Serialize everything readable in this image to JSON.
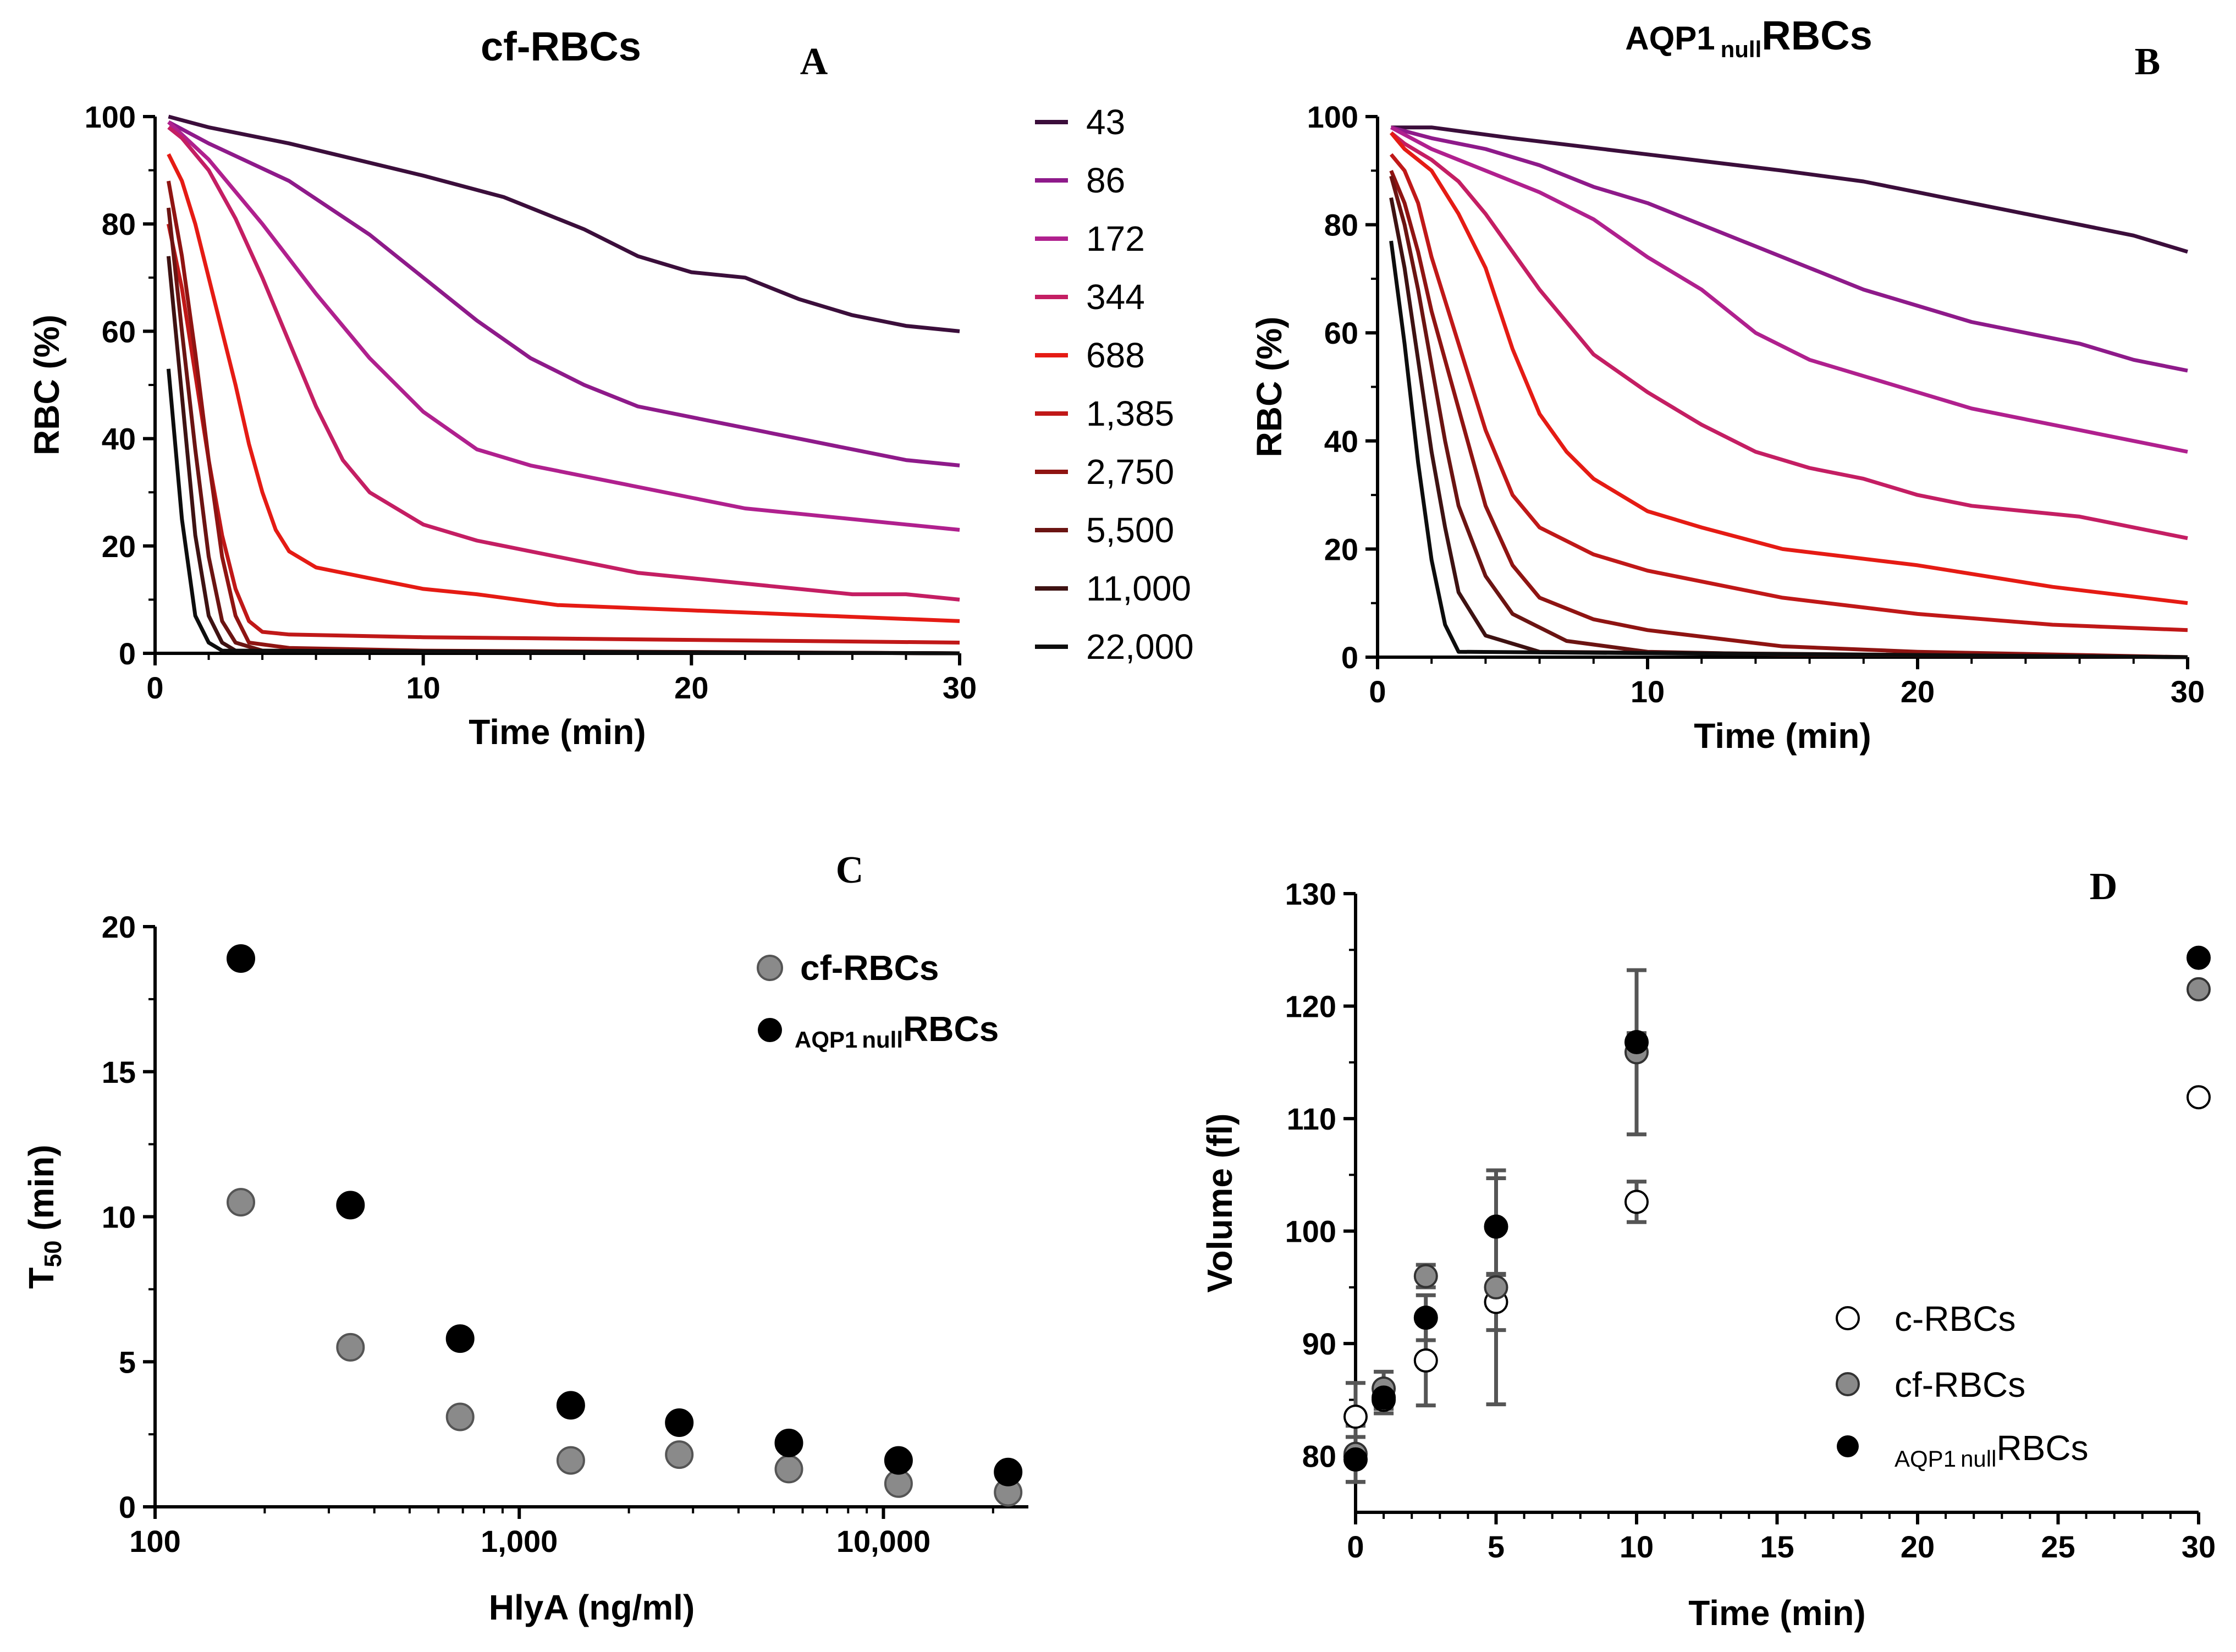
{
  "chart_data": [
    {
      "panel": "A",
      "type": "line",
      "title": "cf-RBCs",
      "xlabel": "Time (min)",
      "ylabel": "RBC (%)",
      "xlim": [
        0,
        30
      ],
      "ylim": [
        0,
        100
      ],
      "xticks": [
        "0",
        "10",
        "20",
        "30"
      ],
      "yticks": [
        "0",
        "20",
        "40",
        "60",
        "80",
        "100"
      ],
      "series": [
        {
          "name": "43",
          "color": "#3b0e3b",
          "x": [
            0.5,
            2,
            5,
            10,
            13,
            16,
            18,
            20,
            22,
            24,
            26,
            28,
            30
          ],
          "y": [
            100,
            98,
            95,
            89,
            85,
            79,
            74,
            71,
            70,
            66,
            63,
            61,
            60
          ]
        },
        {
          "name": "86",
          "color": "#8e1a8a",
          "x": [
            0.5,
            2,
            5,
            8,
            10,
            12,
            14,
            16,
            18,
            20,
            22,
            24,
            26,
            28,
            30
          ],
          "y": [
            99,
            95,
            88,
            78,
            70,
            62,
            55,
            50,
            46,
            44,
            42,
            40,
            38,
            36,
            35
          ]
        },
        {
          "name": "172",
          "color": "#b0208e",
          "x": [
            0.5,
            2,
            4,
            6,
            8,
            10,
            12,
            14,
            16,
            18,
            20,
            22,
            24,
            26,
            28,
            30
          ],
          "y": [
            99,
            92,
            80,
            67,
            55,
            45,
            38,
            35,
            33,
            31,
            29,
            27,
            26,
            25,
            24,
            23
          ]
        },
        {
          "name": "344",
          "color": "#c41e63",
          "x": [
            0.5,
            1,
            2,
            3,
            4,
            5,
            6,
            7,
            8,
            10,
            12,
            14,
            16,
            18,
            20,
            22,
            24,
            26,
            28,
            30
          ],
          "y": [
            98,
            96,
            90,
            81,
            70,
            58,
            46,
            36,
            30,
            24,
            21,
            19,
            17,
            15,
            14,
            13,
            12,
            11,
            11,
            10
          ]
        },
        {
          "name": "688",
          "color": "#e51b14",
          "x": [
            0.5,
            1,
            1.5,
            2,
            2.5,
            3,
            3.5,
            4,
            4.5,
            5,
            6,
            8,
            10,
            12,
            15,
            20,
            25,
            30
          ],
          "y": [
            93,
            88,
            80,
            70,
            60,
            50,
            39,
            30,
            23,
            19,
            16,
            14,
            12,
            11,
            9,
            8,
            7,
            6
          ]
        },
        {
          "name": "1,385",
          "color": "#c01818",
          "x": [
            0.5,
            1,
            1.5,
            2,
            2.5,
            3,
            3.5,
            4,
            5,
            10,
            20,
            30
          ],
          "y": [
            80,
            68,
            52,
            36,
            22,
            12,
            6,
            4,
            3.5,
            3,
            2.5,
            2
          ]
        },
        {
          "name": "2,750",
          "color": "#8f1412",
          "x": [
            0.5,
            1,
            1.5,
            2,
            2.5,
            3,
            3.5,
            5,
            10,
            30
          ],
          "y": [
            88,
            74,
            56,
            36,
            18,
            7,
            2,
            1,
            0.5,
            0
          ]
        },
        {
          "name": "5,500",
          "color": "#6b1412",
          "x": [
            0.5,
            1,
            1.5,
            2,
            2.5,
            3,
            4,
            30
          ],
          "y": [
            83,
            60,
            38,
            18,
            6,
            2,
            0.5,
            0
          ]
        },
        {
          "name": "11,000",
          "color": "#3e1212",
          "x": [
            0.5,
            1,
            1.5,
            2,
            2.5,
            3,
            30
          ],
          "y": [
            74,
            48,
            22,
            7,
            2,
            0.5,
            0
          ]
        },
        {
          "name": "22,000",
          "color": "#0d0d0d",
          "x": [
            0.5,
            1,
            1.5,
            2,
            2.5,
            30
          ],
          "y": [
            53,
            25,
            7,
            2,
            0.5,
            0
          ]
        }
      ]
    },
    {
      "panel": "B",
      "type": "line",
      "title": {
        "main": "AQP1",
        "sub": "null",
        "rest": "RBCs"
      },
      "xlabel": "Time (min)",
      "ylabel": "RBC (%)",
      "xlim": [
        0,
        30
      ],
      "ylim": [
        0,
        100
      ],
      "xticks": [
        "0",
        "10",
        "20",
        "30"
      ],
      "yticks": [
        "0",
        "20",
        "40",
        "60",
        "80",
        "100"
      ],
      "series": [
        {
          "name": "43",
          "color": "#3b0e3b",
          "x": [
            0.5,
            2,
            5,
            10,
            15,
            18,
            20,
            22,
            24,
            26,
            28,
            30
          ],
          "y": [
            98,
            98,
            96,
            93,
            90,
            88,
            86,
            84,
            82,
            80,
            78,
            75
          ]
        },
        {
          "name": "86",
          "color": "#8e1a8a",
          "x": [
            0.5,
            2,
            4,
            6,
            8,
            10,
            12,
            14,
            16,
            18,
            20,
            22,
            24,
            26,
            28,
            30
          ],
          "y": [
            98,
            96,
            94,
            91,
            87,
            84,
            80,
            76,
            72,
            68,
            65,
            62,
            60,
            58,
            55,
            53
          ]
        },
        {
          "name": "172",
          "color": "#b0208e",
          "x": [
            0.5,
            2,
            4,
            6,
            8,
            10,
            12,
            14,
            16,
            18,
            20,
            22,
            24,
            26,
            28,
            30
          ],
          "y": [
            98,
            94,
            90,
            86,
            81,
            74,
            68,
            60,
            55,
            52,
            49,
            46,
            44,
            42,
            40,
            38
          ]
        },
        {
          "name": "344",
          "color": "#c41e63",
          "x": [
            0.5,
            1,
            2,
            3,
            4,
            5,
            6,
            8,
            10,
            12,
            14,
            16,
            18,
            20,
            22,
            24,
            26,
            28,
            30
          ],
          "y": [
            97,
            95,
            92,
            88,
            82,
            75,
            68,
            56,
            49,
            43,
            38,
            35,
            33,
            30,
            28,
            27,
            26,
            24,
            22
          ]
        },
        {
          "name": "688",
          "color": "#e51b14",
          "x": [
            0.5,
            1,
            1.5,
            2,
            3,
            4,
            5,
            6,
            7,
            8,
            10,
            12,
            15,
            20,
            25,
            30
          ],
          "y": [
            97,
            94,
            92,
            90,
            82,
            72,
            57,
            45,
            38,
            33,
            27,
            24,
            20,
            17,
            13,
            10
          ]
        },
        {
          "name": "1,385",
          "color": "#c01818",
          "x": [
            0.5,
            1,
            1.5,
            2,
            3,
            4,
            5,
            6,
            8,
            10,
            15,
            20,
            25,
            30
          ],
          "y": [
            93,
            90,
            84,
            74,
            58,
            42,
            30,
            24,
            19,
            16,
            11,
            8,
            6,
            5
          ]
        },
        {
          "name": "2,750",
          "color": "#8f1412",
          "x": [
            0.5,
            1,
            1.5,
            2,
            3,
            4,
            5,
            6,
            8,
            10,
            15,
            20,
            25,
            30
          ],
          "y": [
            90,
            84,
            75,
            64,
            46,
            28,
            17,
            11,
            7,
            5,
            2,
            1,
            0.5,
            0
          ]
        },
        {
          "name": "5,500",
          "color": "#6b1412",
          "x": [
            0.5,
            1,
            1.5,
            2,
            2.5,
            3,
            4,
            5,
            7,
            10,
            15,
            30
          ],
          "y": [
            89,
            80,
            68,
            54,
            40,
            28,
            15,
            8,
            3,
            1,
            0.5,
            0
          ]
        },
        {
          "name": "11,000",
          "color": "#3e1212",
          "x": [
            0.5,
            1,
            1.5,
            2,
            2.5,
            3,
            4,
            6,
            30
          ],
          "y": [
            85,
            72,
            55,
            38,
            24,
            12,
            4,
            1,
            0
          ]
        },
        {
          "name": "22,000",
          "color": "#0d0d0d",
          "x": [
            0.5,
            1,
            1.5,
            2,
            2.5,
            3,
            30
          ],
          "y": [
            77,
            58,
            36,
            18,
            6,
            1,
            0
          ]
        }
      ]
    },
    {
      "panel": "C",
      "type": "scatter",
      "xscale": "log",
      "xlabel": "HlyA (ng/ml)",
      "ylabel": {
        "main": "T",
        "sub": "50",
        "rest": " (min)"
      },
      "xlim": [
        100,
        25000
      ],
      "ylim": [
        0,
        20
      ],
      "xticks": [
        "100",
        "1,000",
        "10,000"
      ],
      "yticks": [
        "0",
        "5",
        "10",
        "15",
        "20"
      ],
      "series": [
        {
          "name": "cf-RBCs",
          "color": "#8a8a8a",
          "x": [
            172,
            344,
            688,
            1385,
            2750,
            5500,
            11000,
            22000
          ],
          "y": [
            10.5,
            5.5,
            3.1,
            1.6,
            1.8,
            1.3,
            0.8,
            0.5
          ]
        },
        {
          "name": "AQP1 null RBCs",
          "label": {
            "main": "AQP1",
            "sub": "null",
            "rest": "RBCs"
          },
          "color": "#000000",
          "x": [
            172,
            344,
            688,
            1385,
            2750,
            5500,
            11000,
            22000
          ],
          "y": [
            18.9,
            10.4,
            5.8,
            3.5,
            2.9,
            2.2,
            1.6,
            1.2
          ]
        }
      ]
    },
    {
      "panel": "D",
      "type": "scatter",
      "xlabel": "Time (min)",
      "ylabel": "Volume (fl)",
      "xlim": [
        0,
        30
      ],
      "ylim": [
        75,
        130
      ],
      "xticks": [
        "0",
        "5",
        "10",
        "15",
        "20",
        "25",
        "30"
      ],
      "yticks": [
        "80",
        "90",
        "100",
        "110",
        "120",
        "130"
      ],
      "series": [
        {
          "name": "c-RBCs",
          "color": "#ffffff",
          "x": [
            0,
            1,
            2.5,
            5,
            10,
            30
          ],
          "y": [
            83.5,
            85.0,
            88.5,
            93.7,
            102.6,
            111.9
          ],
          "err": [
            3.0,
            1.2,
            4.0,
            2.5,
            1.8,
            0
          ]
        },
        {
          "name": "cf-RBCs",
          "color": "#8a8a8a",
          "x": [
            0,
            1,
            2.5,
            5,
            10,
            30
          ],
          "y": [
            80.2,
            86.0,
            96.0,
            95.0,
            115.9,
            121.5
          ],
          "err": [
            2.5,
            1.5,
            1.0,
            10.4,
            7.3,
            0
          ]
        },
        {
          "name": "AQP1 null RBCs",
          "label": {
            "main": "AQP1",
            "sub": "null",
            "rest": "RBCs"
          },
          "color": "#000000",
          "x": [
            0,
            1,
            2.5,
            5,
            10,
            30
          ],
          "y": [
            79.7,
            85.2,
            92.3,
            100.4,
            116.8,
            124.3
          ],
          "err": [
            2.0,
            1.0,
            2.0,
            4.3,
            0.8,
            0
          ]
        }
      ]
    }
  ],
  "panel_letters": [
    "A",
    "B",
    "C",
    "D"
  ]
}
